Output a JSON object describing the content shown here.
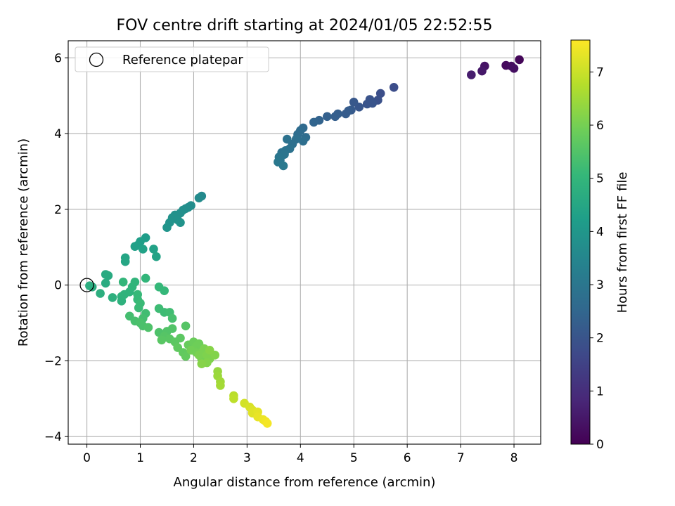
{
  "chart_data": {
    "type": "scatter",
    "title": "FOV centre drift starting at 2024/01/05 22:52:55",
    "xlabel": "Angular distance from reference (arcmin)",
    "ylabel": "Rotation from reference (arcmin)",
    "xlim": [
      -0.35,
      8.5
    ],
    "ylim": [
      -4.2,
      6.45
    ],
    "xticks": [
      0,
      1,
      2,
      3,
      4,
      5,
      6,
      7,
      8
    ],
    "yticks": [
      -4,
      -2,
      0,
      2,
      4,
      6
    ],
    "grid": true,
    "legend": {
      "placement": "top-left",
      "entries": [
        "Reference platepar"
      ]
    },
    "reference_point": {
      "x": 0,
      "y": 0
    },
    "colorbar": {
      "label": "Hours from first FF file",
      "min": 0,
      "max": 7.6,
      "ticks": [
        0,
        1,
        2,
        3,
        4,
        5,
        6,
        7
      ],
      "colormap": "viridis",
      "stops": [
        "#440154",
        "#482878",
        "#3e4989",
        "#31688e",
        "#26828e",
        "#1f9e89",
        "#35b779",
        "#6ece58",
        "#b5de2b",
        "#fde725"
      ]
    },
    "series": [
      {
        "values": [
          {
            "x": 8.1,
            "y": 5.95,
            "h": 0.1
          },
          {
            "x": 7.85,
            "y": 5.8,
            "h": 0.2
          },
          {
            "x": 7.95,
            "y": 5.78,
            "h": 0.25
          },
          {
            "x": 8.0,
            "y": 5.72,
            "h": 0.3
          },
          {
            "x": 7.45,
            "y": 5.78,
            "h": 0.4
          },
          {
            "x": 7.4,
            "y": 5.65,
            "h": 0.5
          },
          {
            "x": 7.2,
            "y": 5.55,
            "h": 0.6
          },
          {
            "x": 5.75,
            "y": 5.22,
            "h": 1.8
          },
          {
            "x": 5.5,
            "y": 5.06,
            "h": 1.85
          },
          {
            "x": 5.45,
            "y": 4.88,
            "h": 1.9
          },
          {
            "x": 5.3,
            "y": 4.9,
            "h": 1.95
          },
          {
            "x": 5.35,
            "y": 4.8,
            "h": 2.0
          },
          {
            "x": 5.25,
            "y": 4.78,
            "h": 2.0
          },
          {
            "x": 5.1,
            "y": 4.7,
            "h": 2.05
          },
          {
            "x": 5.0,
            "y": 4.83,
            "h": 2.1
          },
          {
            "x": 4.95,
            "y": 4.62,
            "h": 2.15
          },
          {
            "x": 4.9,
            "y": 4.6,
            "h": 2.2
          },
          {
            "x": 4.85,
            "y": 4.52,
            "h": 2.2
          },
          {
            "x": 4.7,
            "y": 4.52,
            "h": 2.25
          },
          {
            "x": 4.65,
            "y": 4.45,
            "h": 2.3
          },
          {
            "x": 4.5,
            "y": 4.45,
            "h": 2.35
          },
          {
            "x": 4.35,
            "y": 4.35,
            "h": 2.4
          },
          {
            "x": 4.25,
            "y": 4.3,
            "h": 2.45
          },
          {
            "x": 4.05,
            "y": 4.15,
            "h": 2.6
          },
          {
            "x": 4.0,
            "y": 4.08,
            "h": 2.65
          },
          {
            "x": 3.95,
            "y": 3.98,
            "h": 2.7
          },
          {
            "x": 4.1,
            "y": 3.9,
            "h": 2.7
          },
          {
            "x": 4.05,
            "y": 3.8,
            "h": 2.75
          },
          {
            "x": 3.92,
            "y": 3.85,
            "h": 2.8
          },
          {
            "x": 3.85,
            "y": 3.72,
            "h": 2.8
          },
          {
            "x": 3.8,
            "y": 3.6,
            "h": 2.85
          },
          {
            "x": 3.75,
            "y": 3.85,
            "h": 2.85
          },
          {
            "x": 3.72,
            "y": 3.55,
            "h": 2.9
          },
          {
            "x": 3.65,
            "y": 3.5,
            "h": 2.9
          },
          {
            "x": 3.7,
            "y": 3.45,
            "h": 2.95
          },
          {
            "x": 3.6,
            "y": 3.38,
            "h": 3.0
          },
          {
            "x": 3.62,
            "y": 3.3,
            "h": 3.0
          },
          {
            "x": 3.58,
            "y": 3.25,
            "h": 3.05
          },
          {
            "x": 3.68,
            "y": 3.15,
            "h": 3.1
          },
          {
            "x": 2.15,
            "y": 2.35,
            "h": 3.6
          },
          {
            "x": 2.1,
            "y": 2.3,
            "h": 3.65
          },
          {
            "x": 1.95,
            "y": 2.1,
            "h": 3.7
          },
          {
            "x": 1.9,
            "y": 2.05,
            "h": 3.72
          },
          {
            "x": 1.85,
            "y": 2.02,
            "h": 3.75
          },
          {
            "x": 1.8,
            "y": 1.98,
            "h": 3.78
          },
          {
            "x": 1.75,
            "y": 1.9,
            "h": 3.8
          },
          {
            "x": 1.65,
            "y": 1.85,
            "h": 3.82
          },
          {
            "x": 1.6,
            "y": 1.78,
            "h": 3.85
          },
          {
            "x": 1.7,
            "y": 1.72,
            "h": 3.85
          },
          {
            "x": 1.55,
            "y": 1.65,
            "h": 3.9
          },
          {
            "x": 1.75,
            "y": 1.65,
            "h": 3.9
          },
          {
            "x": 1.5,
            "y": 1.52,
            "h": 3.95
          },
          {
            "x": 1.1,
            "y": 1.25,
            "h": 4.2
          },
          {
            "x": 1.0,
            "y": 1.15,
            "h": 4.25
          },
          {
            "x": 0.95,
            "y": 1.05,
            "h": 4.3
          },
          {
            "x": 0.9,
            "y": 1.02,
            "h": 4.3
          },
          {
            "x": 1.05,
            "y": 0.95,
            "h": 4.35
          },
          {
            "x": 1.25,
            "y": 0.95,
            "h": 4.35
          },
          {
            "x": 1.3,
            "y": 0.75,
            "h": 4.4
          },
          {
            "x": 0.72,
            "y": 0.72,
            "h": 4.45
          },
          {
            "x": 0.72,
            "y": 0.62,
            "h": 4.5
          },
          {
            "x": 0.35,
            "y": 0.28,
            "h": 4.6
          },
          {
            "x": 0.4,
            "y": 0.25,
            "h": 4.62
          },
          {
            "x": 0.35,
            "y": 0.05,
            "h": 4.65
          },
          {
            "x": 0.1,
            "y": -0.05,
            "h": 4.7
          },
          {
            "x": 0.05,
            "y": -0.02,
            "h": 4.72
          },
          {
            "x": 0.25,
            "y": -0.22,
            "h": 4.75
          },
          {
            "x": 0.48,
            "y": -0.33,
            "h": 4.8
          },
          {
            "x": 0.65,
            "y": -0.3,
            "h": 4.85
          },
          {
            "x": 0.65,
            "y": -0.42,
            "h": 4.85
          },
          {
            "x": 0.7,
            "y": -0.25,
            "h": 4.9
          },
          {
            "x": 0.8,
            "y": -0.18,
            "h": 4.9
          },
          {
            "x": 0.85,
            "y": -0.05,
            "h": 4.95
          },
          {
            "x": 0.9,
            "y": 0.08,
            "h": 4.95
          },
          {
            "x": 0.68,
            "y": 0.08,
            "h": 5.0
          },
          {
            "x": 1.1,
            "y": 0.18,
            "h": 5.0
          },
          {
            "x": 1.35,
            "y": -0.05,
            "h": 5.05
          },
          {
            "x": 1.45,
            "y": -0.15,
            "h": 5.05
          },
          {
            "x": 0.95,
            "y": -0.25,
            "h": 5.1
          },
          {
            "x": 0.95,
            "y": -0.38,
            "h": 5.1
          },
          {
            "x": 1.0,
            "y": -0.48,
            "h": 5.15
          },
          {
            "x": 0.97,
            "y": -0.6,
            "h": 5.15
          },
          {
            "x": 1.35,
            "y": -0.62,
            "h": 5.2
          },
          {
            "x": 1.45,
            "y": -0.72,
            "h": 5.2
          },
          {
            "x": 1.55,
            "y": -0.72,
            "h": 5.25
          },
          {
            "x": 1.1,
            "y": -0.75,
            "h": 5.25
          },
          {
            "x": 0.8,
            "y": -0.82,
            "h": 5.3
          },
          {
            "x": 1.05,
            "y": -0.88,
            "h": 5.3
          },
          {
            "x": 1.6,
            "y": -0.88,
            "h": 5.35
          },
          {
            "x": 0.9,
            "y": -0.95,
            "h": 5.35
          },
          {
            "x": 1.0,
            "y": -1.0,
            "h": 5.4
          },
          {
            "x": 1.05,
            "y": -1.08,
            "h": 5.4
          },
          {
            "x": 1.15,
            "y": -1.12,
            "h": 5.45
          },
          {
            "x": 1.35,
            "y": -1.25,
            "h": 5.45
          },
          {
            "x": 1.5,
            "y": -1.22,
            "h": 5.5
          },
          {
            "x": 1.6,
            "y": -1.15,
            "h": 5.5
          },
          {
            "x": 1.85,
            "y": -1.08,
            "h": 5.55
          },
          {
            "x": 1.45,
            "y": -1.35,
            "h": 5.55
          },
          {
            "x": 1.4,
            "y": -1.45,
            "h": 5.6
          },
          {
            "x": 1.55,
            "y": -1.42,
            "h": 5.6
          },
          {
            "x": 1.65,
            "y": -1.5,
            "h": 5.65
          },
          {
            "x": 1.75,
            "y": -1.4,
            "h": 5.65
          },
          {
            "x": 1.7,
            "y": -1.65,
            "h": 5.7
          },
          {
            "x": 1.8,
            "y": -1.78,
            "h": 5.72
          },
          {
            "x": 1.85,
            "y": -1.88,
            "h": 5.75
          },
          {
            "x": 1.9,
            "y": -1.58,
            "h": 5.8
          },
          {
            "x": 2.0,
            "y": -1.5,
            "h": 5.85
          },
          {
            "x": 2.05,
            "y": -1.62,
            "h": 5.9
          },
          {
            "x": 2.1,
            "y": -1.55,
            "h": 5.9
          },
          {
            "x": 1.95,
            "y": -1.72,
            "h": 5.95
          },
          {
            "x": 2.05,
            "y": -1.78,
            "h": 5.95
          },
          {
            "x": 2.15,
            "y": -1.8,
            "h": 6.0
          },
          {
            "x": 2.15,
            "y": -1.95,
            "h": 6.0
          },
          {
            "x": 2.2,
            "y": -1.68,
            "h": 6.05
          },
          {
            "x": 2.1,
            "y": -1.85,
            "h": 6.05
          },
          {
            "x": 2.25,
            "y": -1.85,
            "h": 6.1
          },
          {
            "x": 2.3,
            "y": -1.95,
            "h": 6.1
          },
          {
            "x": 2.25,
            "y": -2.05,
            "h": 6.15
          },
          {
            "x": 2.4,
            "y": -1.85,
            "h": 6.15
          },
          {
            "x": 2.15,
            "y": -2.08,
            "h": 6.2
          },
          {
            "x": 2.3,
            "y": -1.72,
            "h": 6.2
          },
          {
            "x": 2.45,
            "y": -2.28,
            "h": 6.4
          },
          {
            "x": 2.45,
            "y": -2.4,
            "h": 6.45
          },
          {
            "x": 2.5,
            "y": -2.55,
            "h": 6.5
          },
          {
            "x": 2.5,
            "y": -2.65,
            "h": 6.55
          },
          {
            "x": 2.75,
            "y": -2.92,
            "h": 6.8
          },
          {
            "x": 2.75,
            "y": -3.0,
            "h": 6.85
          },
          {
            "x": 2.95,
            "y": -3.12,
            "h": 7.1
          },
          {
            "x": 3.05,
            "y": -3.22,
            "h": 7.15
          },
          {
            "x": 3.1,
            "y": -3.3,
            "h": 7.2
          },
          {
            "x": 3.1,
            "y": -3.38,
            "h": 7.25
          },
          {
            "x": 3.2,
            "y": -3.35,
            "h": 7.3
          },
          {
            "x": 3.2,
            "y": -3.48,
            "h": 7.35
          },
          {
            "x": 3.3,
            "y": -3.55,
            "h": 7.4
          },
          {
            "x": 3.35,
            "y": -3.6,
            "h": 7.45
          },
          {
            "x": 3.38,
            "y": -3.65,
            "h": 7.5
          }
        ]
      }
    ]
  }
}
